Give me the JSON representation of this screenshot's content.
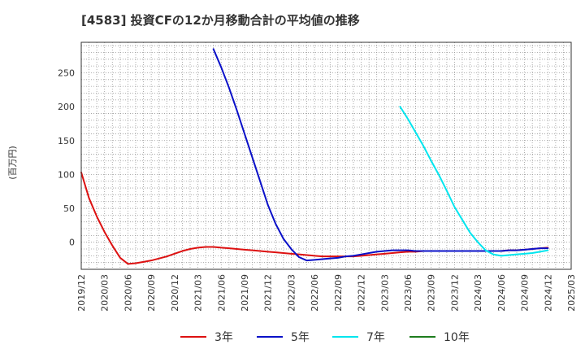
{
  "chart_data": {
    "type": "line",
    "title": "[4583]  投資CFの12か月移動合計の平均値の推移",
    "ylabel": "(百万円)",
    "xlabel": "",
    "ylim": [
      -40,
      295
    ],
    "yticks": [
      0,
      50,
      100,
      150,
      200,
      250
    ],
    "x_start": "2019-12",
    "x_end": "2025-03",
    "xtick_labels": [
      "2019/12",
      "2020/03",
      "2020/06",
      "2020/09",
      "2020/12",
      "2021/03",
      "2021/06",
      "2021/09",
      "2021/12",
      "2022/03",
      "2022/06",
      "2022/09",
      "2022/12",
      "2023/03",
      "2023/06",
      "2023/09",
      "2023/12",
      "2024/03",
      "2024/06",
      "2024/09",
      "2024/12",
      "2025/03"
    ],
    "grid": true,
    "legend_position": "bottom",
    "series": [
      {
        "name": "3年",
        "color": "#dd1111",
        "points": [
          [
            "2019-12",
            103
          ],
          [
            "2020-01",
            65
          ],
          [
            "2020-02",
            38
          ],
          [
            "2020-03",
            15
          ],
          [
            "2020-04",
            -5
          ],
          [
            "2020-05",
            -23
          ],
          [
            "2020-06",
            -32
          ],
          [
            "2020-07",
            -31
          ],
          [
            "2020-08",
            -29
          ],
          [
            "2020-09",
            -27
          ],
          [
            "2020-10",
            -24
          ],
          [
            "2020-11",
            -21
          ],
          [
            "2020-12",
            -17
          ],
          [
            "2021-01",
            -13
          ],
          [
            "2021-02",
            -10
          ],
          [
            "2021-03",
            -8
          ],
          [
            "2021-04",
            -7
          ],
          [
            "2021-05",
            -7
          ],
          [
            "2021-06",
            -8
          ],
          [
            "2021-07",
            -9
          ],
          [
            "2021-08",
            -10
          ],
          [
            "2021-09",
            -11
          ],
          [
            "2021-10",
            -12
          ],
          [
            "2021-11",
            -13
          ],
          [
            "2021-12",
            -14
          ],
          [
            "2022-01",
            -15
          ],
          [
            "2022-02",
            -16
          ],
          [
            "2022-03",
            -17
          ],
          [
            "2022-04",
            -18
          ],
          [
            "2022-05",
            -19
          ],
          [
            "2022-06",
            -20
          ],
          [
            "2022-07",
            -21
          ],
          [
            "2022-08",
            -21
          ],
          [
            "2022-09",
            -21
          ],
          [
            "2022-10",
            -21
          ],
          [
            "2022-11",
            -21
          ],
          [
            "2022-12",
            -20
          ],
          [
            "2023-01",
            -19
          ],
          [
            "2023-02",
            -18
          ],
          [
            "2023-03",
            -17
          ],
          [
            "2023-04",
            -16
          ],
          [
            "2023-05",
            -15
          ],
          [
            "2023-06",
            -14
          ],
          [
            "2023-07",
            -14
          ],
          [
            "2023-08",
            -13
          ],
          [
            "2023-09",
            -13
          ],
          [
            "2023-10",
            -13
          ],
          [
            "2023-11",
            -13
          ],
          [
            "2023-12",
            -13
          ],
          [
            "2024-01",
            -13
          ],
          [
            "2024-02",
            -13
          ],
          [
            "2024-03",
            -13
          ],
          [
            "2024-04",
            -13
          ],
          [
            "2024-05",
            -13
          ],
          [
            "2024-06",
            -13
          ],
          [
            "2024-07",
            -12
          ],
          [
            "2024-08",
            -12
          ],
          [
            "2024-09",
            -11
          ],
          [
            "2024-10",
            -10
          ],
          [
            "2024-11",
            -9
          ],
          [
            "2024-12",
            -8
          ]
        ]
      },
      {
        "name": "5年",
        "color": "#0a10c8",
        "points": [
          [
            "2021-05",
            285
          ],
          [
            "2021-06",
            258
          ],
          [
            "2021-07",
            228
          ],
          [
            "2021-08",
            195
          ],
          [
            "2021-09",
            160
          ],
          [
            "2021-10",
            125
          ],
          [
            "2021-11",
            90
          ],
          [
            "2021-12",
            55
          ],
          [
            "2022-01",
            27
          ],
          [
            "2022-02",
            5
          ],
          [
            "2022-03",
            -10
          ],
          [
            "2022-04",
            -22
          ],
          [
            "2022-05",
            -27
          ],
          [
            "2022-06",
            -26
          ],
          [
            "2022-07",
            -25
          ],
          [
            "2022-08",
            -24
          ],
          [
            "2022-09",
            -23
          ],
          [
            "2022-10",
            -21
          ],
          [
            "2022-11",
            -20
          ],
          [
            "2022-12",
            -18
          ],
          [
            "2023-01",
            -16
          ],
          [
            "2023-02",
            -14
          ],
          [
            "2023-03",
            -13
          ],
          [
            "2023-04",
            -12
          ],
          [
            "2023-05",
            -12
          ],
          [
            "2023-06",
            -12
          ],
          [
            "2023-07",
            -13
          ],
          [
            "2023-08",
            -13
          ],
          [
            "2023-09",
            -13
          ],
          [
            "2023-10",
            -13
          ],
          [
            "2023-11",
            -13
          ],
          [
            "2023-12",
            -13
          ],
          [
            "2024-01",
            -13
          ],
          [
            "2024-02",
            -13
          ],
          [
            "2024-03",
            -13
          ],
          [
            "2024-04",
            -13
          ],
          [
            "2024-05",
            -13
          ],
          [
            "2024-06",
            -13
          ],
          [
            "2024-07",
            -12
          ],
          [
            "2024-08",
            -12
          ],
          [
            "2024-09",
            -11
          ],
          [
            "2024-10",
            -10
          ],
          [
            "2024-11",
            -9
          ],
          [
            "2024-12",
            -9
          ]
        ]
      },
      {
        "name": "7年",
        "color": "#00e5ee",
        "points": [
          [
            "2023-05",
            200
          ],
          [
            "2023-06",
            182
          ],
          [
            "2023-07",
            162
          ],
          [
            "2023-08",
            142
          ],
          [
            "2023-09",
            120
          ],
          [
            "2023-10",
            99
          ],
          [
            "2023-11",
            76
          ],
          [
            "2023-12",
            52
          ],
          [
            "2024-01",
            33
          ],
          [
            "2024-02",
            14
          ],
          [
            "2024-03",
            0
          ],
          [
            "2024-04",
            -12
          ],
          [
            "2024-05",
            -18
          ],
          [
            "2024-06",
            -20
          ],
          [
            "2024-07",
            -19
          ],
          [
            "2024-08",
            -18
          ],
          [
            "2024-09",
            -17
          ],
          [
            "2024-10",
            -16
          ],
          [
            "2024-11",
            -14
          ],
          [
            "2024-12",
            -12
          ]
        ]
      },
      {
        "name": "10年",
        "color": "#1e7d1e",
        "points": []
      }
    ]
  }
}
